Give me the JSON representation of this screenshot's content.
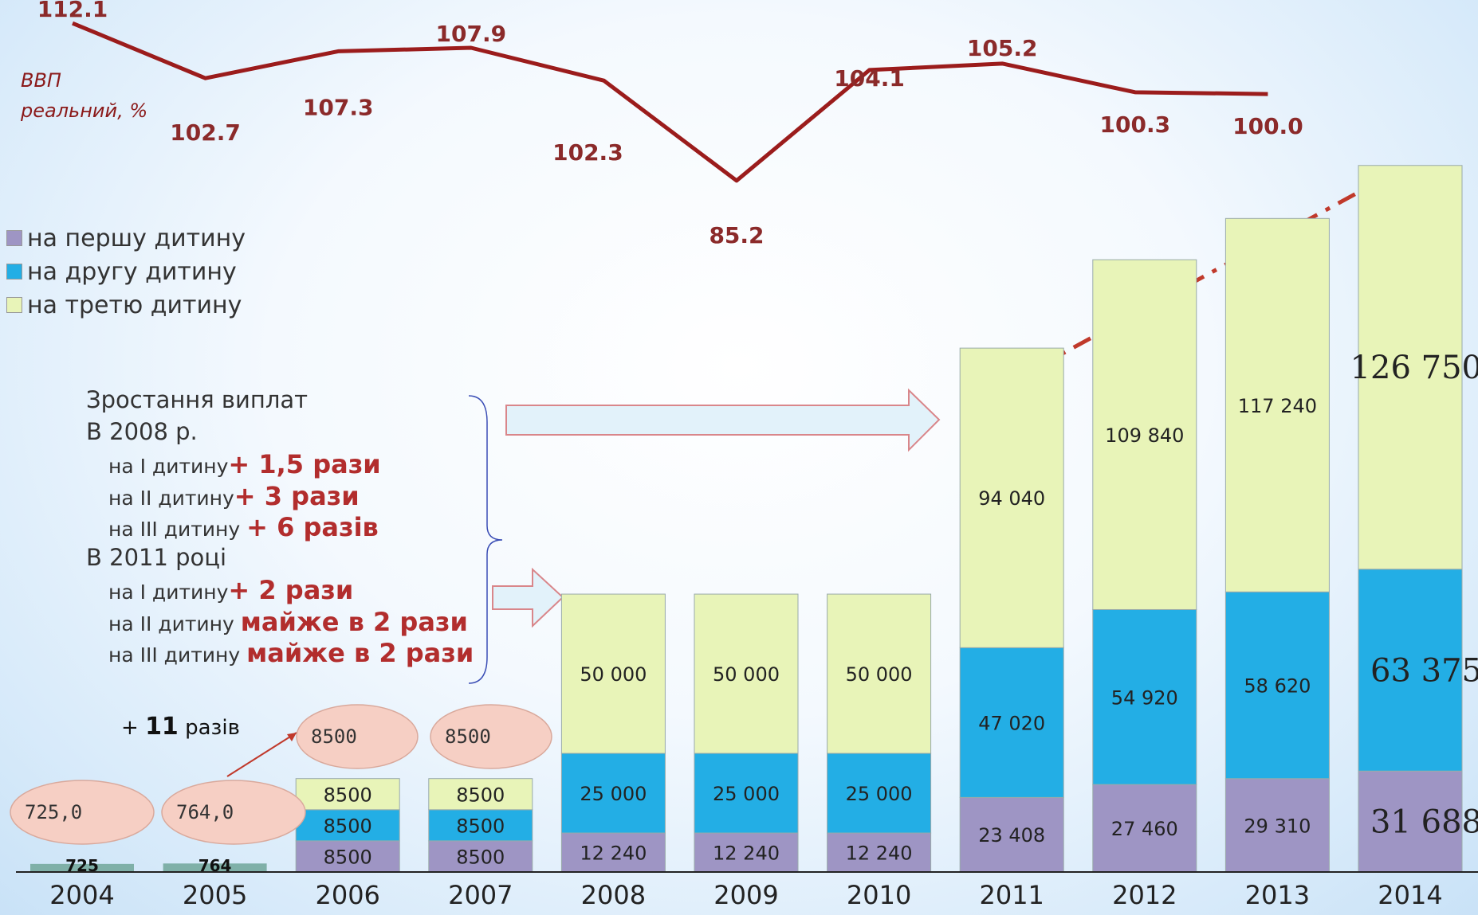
{
  "chart_data": {
    "type": "bar",
    "categories": [
      "2004",
      "2005",
      "2006",
      "2007",
      "2008",
      "2009",
      "2010",
      "2011",
      "2012",
      "2013",
      "2014"
    ],
    "series": [
      {
        "name": "на першу дитину",
        "color": "#9e95c4",
        "values": [
          null,
          null,
          8500,
          8500,
          12240,
          12240,
          12240,
          23408,
          27460,
          29310,
          31688
        ],
        "labels": [
          "",
          "",
          "8500",
          "8500",
          "12 240",
          "12 240",
          "12 240",
          "23 408",
          "27 460",
          "29 310",
          "31 688"
        ]
      },
      {
        "name": "на другу дитину",
        "color": "#23aee5",
        "values": [
          null,
          null,
          8500,
          8500,
          25000,
          25000,
          25000,
          47020,
          54920,
          58620,
          63375
        ],
        "labels": [
          "",
          "",
          "8500",
          "8500",
          "25 000",
          "25 000",
          "25 000",
          "47 020",
          "54 920",
          "58 620",
          "63 375"
        ]
      },
      {
        "name": "на третю дитину",
        "color": "#e8f4b8",
        "values": [
          null,
          null,
          8500,
          8500,
          50000,
          50000,
          50000,
          94040,
          109840,
          117240,
          126750
        ],
        "labels": [
          "",
          "",
          "8500",
          "8500",
          "50 000",
          "50 000",
          "50 000",
          "94 040",
          "109 840",
          "117 240",
          "126 750"
        ]
      }
    ],
    "single_payment": {
      "values": [
        725,
        764
      ],
      "labels": [
        "725",
        "764"
      ],
      "bubbles": [
        "725,0",
        "764,0"
      ]
    },
    "top_bubbles": [
      "8500",
      "8500"
    ],
    "gdp": {
      "label_line1": "ВВП",
      "label_line2": "реальний, %",
      "values": [
        112.1,
        102.7,
        107.3,
        107.9,
        102.3,
        85.2,
        104.1,
        105.2,
        100.3,
        100.0
      ],
      "labels": [
        "112.1",
        "102.7",
        "107.3",
        "107.9",
        "102.3",
        "85.2",
        "104.1",
        "105.2",
        "100.3",
        "100.0"
      ]
    }
  },
  "colors": {
    "gdp_line": "#9b1c1c",
    "arrow_fill": "#e2f2fa",
    "arrow_stroke": "#d9868a",
    "bubble": "#f6cfc4",
    "note_red": "#b22d2d",
    "bracket": "#3a4db5"
  },
  "note": {
    "title": "Зростання виплат",
    "y2008": "В 2008 р.",
    "l1_prefix": "на І   дитину",
    "l1_value": "+ 1,5 рази",
    "l2_prefix": "на ІІ  дитину",
    "l2_value": "+ 3 рази",
    "l3_prefix": "на ІІІ дитину ",
    "l3_value": " + 6 разів",
    "y2011": "В 2011 році",
    "l4_prefix": "на І   дитину",
    "l4_value": "+ 2 рази",
    "l5_prefix": "на ІІ  дитину ",
    "l5_value": " майже в 2 рази",
    "l6_prefix": "на ІІІ дитину ",
    "l6_value": " майже в 2 рази"
  },
  "growth": {
    "prefix": "+ ",
    "number": "11",
    "suffix": " разів"
  }
}
